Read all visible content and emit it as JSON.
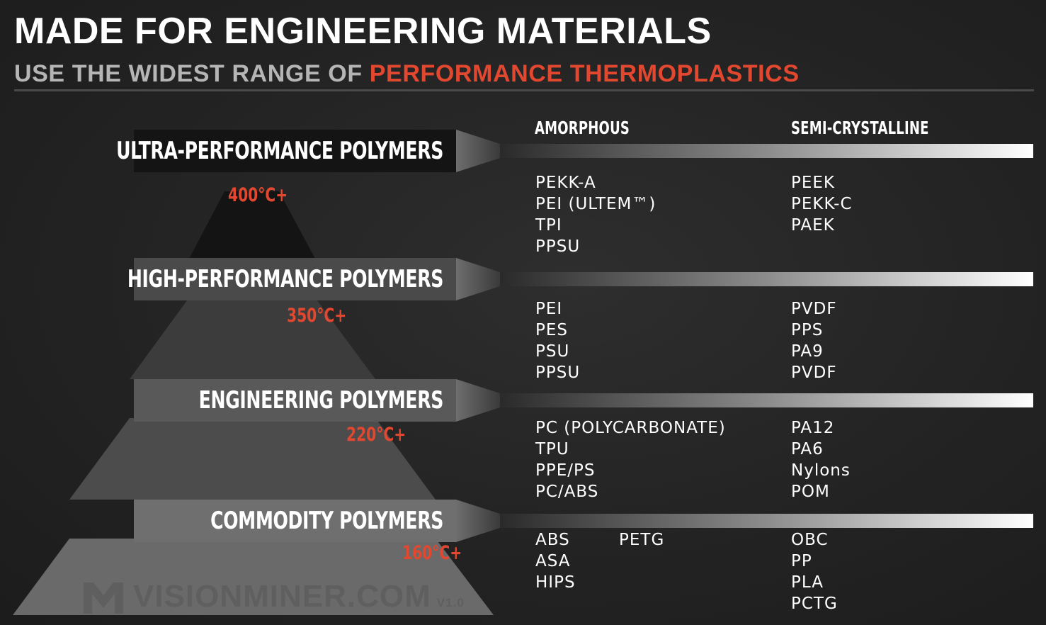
{
  "header": {
    "title": "MADE FOR ENGINEERING MATERIALS",
    "subtitle_prefix": "USE THE WIDEST RANGE OF ",
    "subtitle_highlight": "PERFORMANCE THERMOPLASTICS"
  },
  "columns": {
    "amorphous": "AMORPHOUS",
    "semi_crystalline": "SEMI-CRYSTALLINE"
  },
  "tiers": [
    {
      "label": "ULTRA-PERFORMANCE POLYMERS",
      "temp": "400°C+",
      "amorphous": [
        "PEKK-A",
        "PEI (ULTEM™)",
        "TPI",
        "PPSU"
      ],
      "semi_crystalline": [
        "PEEK",
        "PEKK-C",
        "PAEK"
      ]
    },
    {
      "label": "HIGH-PERFORMANCE POLYMERS",
      "temp": "350°C+",
      "amorphous": [
        "PEI",
        "PES",
        "PSU",
        "PPSU"
      ],
      "semi_crystalline": [
        "PVDF",
        "PPS",
        "PA9",
        "PVDF"
      ]
    },
    {
      "label": "ENGINEERING POLYMERS",
      "temp": "220°C+",
      "amorphous": [
        "PC (POLYCARBONATE)",
        "TPU",
        "PPE/PS",
        "PC/ABS"
      ],
      "semi_crystalline": [
        "PA12",
        "PA6",
        "Nylons",
        "POM"
      ]
    },
    {
      "label": "COMMODITY POLYMERS",
      "temp": "160°C+",
      "amorphous": [
        "ABS",
        "ASA",
        "HIPS"
      ],
      "amorphous_extra": [
        "PETG"
      ],
      "semi_crystalline": [
        "OBC",
        "PP",
        "PLA",
        "PCTG"
      ]
    }
  ],
  "watermark": {
    "text": "VISIONMINER.COM",
    "version": "V1.0",
    "icon": "visionminer-logo-icon"
  },
  "colors": {
    "accent": "#e2472f",
    "background": "#252525",
    "text": "#ffffff",
    "subtitle_gray": "#b5b5b5"
  }
}
